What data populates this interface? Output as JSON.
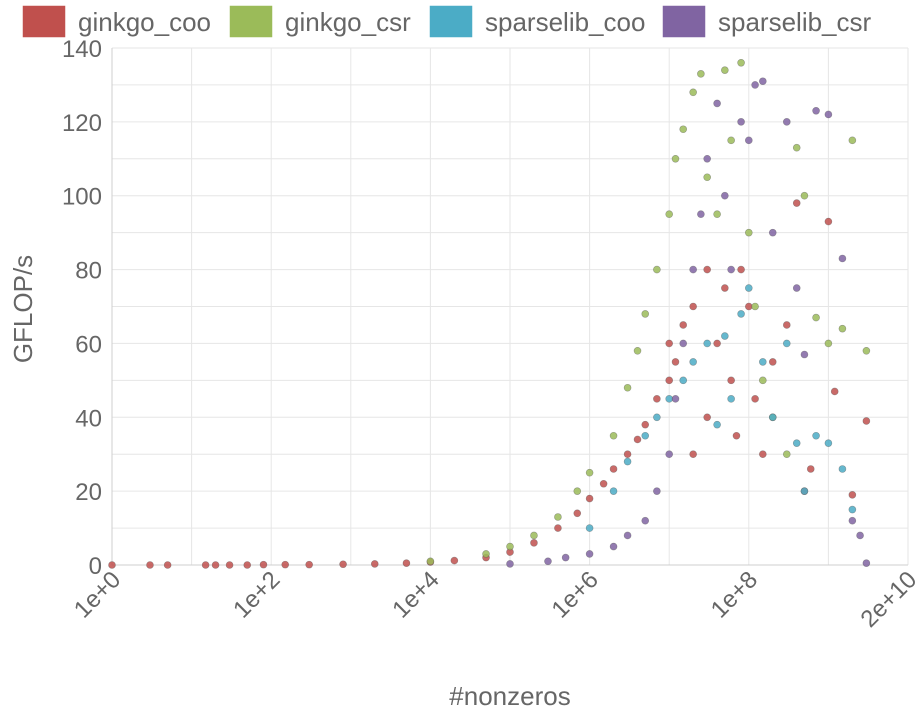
{
  "chart_data": {
    "type": "scatter",
    "xlabel": "#nonzeros",
    "ylabel": "GFLOP/s",
    "xscale": "log",
    "xlim": [
      1,
      10000000000.0
    ],
    "ylim": [
      0,
      140
    ],
    "grid": true,
    "legend_position": "top",
    "x_tick_labels": [
      "1e+0",
      "1e+2",
      "1e+4",
      "1e+6",
      "1e+8",
      "2e+10"
    ],
    "y_ticks": [
      0,
      20,
      40,
      60,
      80,
      100,
      120,
      140
    ],
    "series": [
      {
        "name": "ginkgo_coo",
        "color": "#c0504d",
        "points": [
          [
            1,
            0
          ],
          [
            3,
            0
          ],
          [
            5,
            0
          ],
          [
            15,
            0
          ],
          [
            20,
            0
          ],
          [
            30,
            0
          ],
          [
            50,
            0
          ],
          [
            80,
            0.1
          ],
          [
            150,
            0.1
          ],
          [
            300,
            0.1
          ],
          [
            800,
            0.2
          ],
          [
            2000,
            0.3
          ],
          [
            5000,
            0.5
          ],
          [
            10000,
            0.8
          ],
          [
            20000,
            1.2
          ],
          [
            50000,
            2
          ],
          [
            100000,
            3.5
          ],
          [
            200000,
            6
          ],
          [
            400000,
            10
          ],
          [
            700000,
            14
          ],
          [
            1000000,
            18
          ],
          [
            1500000,
            22
          ],
          [
            2000000,
            26
          ],
          [
            3000000,
            30
          ],
          [
            4000000,
            34
          ],
          [
            5000000,
            38
          ],
          [
            7000000,
            45
          ],
          [
            10000000,
            50
          ],
          [
            10000000,
            60
          ],
          [
            12000000,
            55
          ],
          [
            15000000,
            65
          ],
          [
            20000000,
            70
          ],
          [
            20000000,
            30
          ],
          [
            30000000,
            80
          ],
          [
            30000000,
            40
          ],
          [
            40000000,
            60
          ],
          [
            50000000,
            75
          ],
          [
            60000000,
            50
          ],
          [
            70000000,
            35
          ],
          [
            80000000,
            80
          ],
          [
            100000000,
            70
          ],
          [
            120000000,
            45
          ],
          [
            150000000,
            30
          ],
          [
            200000000,
            55
          ],
          [
            300000000,
            65
          ],
          [
            400000000,
            98
          ],
          [
            500000000,
            20
          ],
          [
            600000000,
            26
          ],
          [
            1000000000,
            93
          ],
          [
            1200000000,
            47
          ],
          [
            2000000000,
            19
          ],
          [
            3000000000,
            39
          ]
        ]
      },
      {
        "name": "ginkgo_csr",
        "color": "#9bbb59",
        "points": [
          [
            10000,
            1
          ],
          [
            50000,
            3
          ],
          [
            100000,
            5
          ],
          [
            200000,
            8
          ],
          [
            400000,
            13
          ],
          [
            700000,
            20
          ],
          [
            1000000,
            25
          ],
          [
            2000000,
            35
          ],
          [
            3000000,
            48
          ],
          [
            4000000,
            58
          ],
          [
            5000000,
            68
          ],
          [
            7000000,
            80
          ],
          [
            10000000,
            95
          ],
          [
            12000000,
            110
          ],
          [
            15000000,
            118
          ],
          [
            20000000,
            128
          ],
          [
            25000000,
            133
          ],
          [
            30000000,
            105
          ],
          [
            40000000,
            95
          ],
          [
            50000000,
            134
          ],
          [
            60000000,
            115
          ],
          [
            80000000,
            136
          ],
          [
            100000000,
            90
          ],
          [
            120000000,
            70
          ],
          [
            150000000,
            50
          ],
          [
            200000000,
            40
          ],
          [
            300000000,
            30
          ],
          [
            400000000,
            113
          ],
          [
            500000000,
            100
          ],
          [
            700000000,
            67
          ],
          [
            1000000000,
            60
          ],
          [
            1500000000,
            64
          ],
          [
            2000000000,
            115
          ],
          [
            3000000000,
            58
          ]
        ]
      },
      {
        "name": "sparselib_coo",
        "color": "#4bacc6",
        "points": [
          [
            1000000,
            10
          ],
          [
            2000000,
            20
          ],
          [
            3000000,
            28
          ],
          [
            5000000,
            35
          ],
          [
            7000000,
            40
          ],
          [
            10000000,
            45
          ],
          [
            15000000,
            50
          ],
          [
            20000000,
            55
          ],
          [
            30000000,
            60
          ],
          [
            40000000,
            38
          ],
          [
            50000000,
            62
          ],
          [
            60000000,
            45
          ],
          [
            80000000,
            68
          ],
          [
            100000000,
            75
          ],
          [
            150000000,
            55
          ],
          [
            200000000,
            40
          ],
          [
            300000000,
            60
          ],
          [
            400000000,
            33
          ],
          [
            500000000,
            20
          ],
          [
            700000000,
            35
          ],
          [
            1000000000,
            33
          ],
          [
            1500000000,
            26
          ],
          [
            2000000000,
            15
          ]
        ]
      },
      {
        "name": "sparselib_csr",
        "color": "#8064a2",
        "points": [
          [
            100000,
            0.3
          ],
          [
            300000,
            1
          ],
          [
            500000,
            2
          ],
          [
            1000000,
            3
          ],
          [
            2000000,
            5
          ],
          [
            3000000,
            8
          ],
          [
            5000000,
            12
          ],
          [
            7000000,
            20
          ],
          [
            10000000,
            30
          ],
          [
            12000000,
            45
          ],
          [
            15000000,
            60
          ],
          [
            20000000,
            80
          ],
          [
            25000000,
            95
          ],
          [
            30000000,
            110
          ],
          [
            40000000,
            125
          ],
          [
            50000000,
            100
          ],
          [
            60000000,
            80
          ],
          [
            80000000,
            120
          ],
          [
            100000000,
            115
          ],
          [
            120000000,
            130
          ],
          [
            150000000,
            131
          ],
          [
            200000000,
            90
          ],
          [
            300000000,
            120
          ],
          [
            400000000,
            75
          ],
          [
            500000000,
            57
          ],
          [
            700000000,
            123
          ],
          [
            1000000000,
            122
          ],
          [
            1500000000,
            83
          ],
          [
            2000000000,
            12
          ],
          [
            2500000000,
            8
          ],
          [
            3000000000,
            0.5
          ]
        ]
      }
    ]
  }
}
